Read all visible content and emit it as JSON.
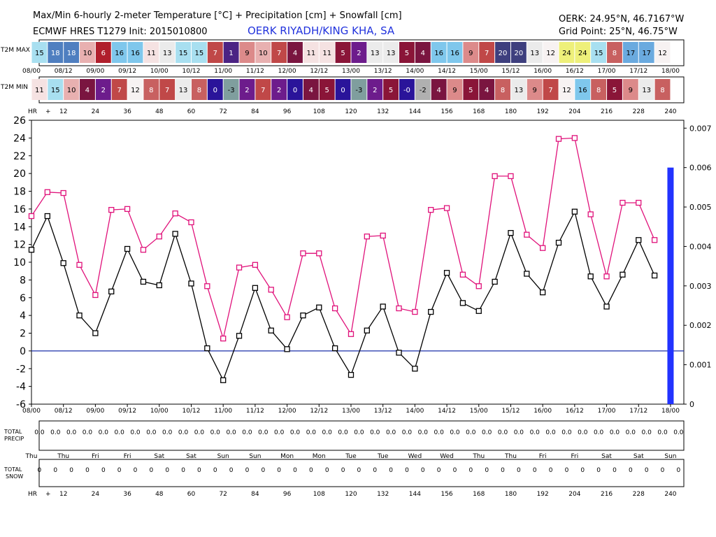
{
  "header": {
    "title": "Max/Min 6-hourly 2-meter Temperature [°C] + Precipitation [cm] + Snowfall [cm]",
    "model": "ECMWF HRES T1279 Init: 2015010800",
    "station": "OERK RIYADH/KING KHA, SA",
    "location": "OERK: 24.95°N, 46.7167°W",
    "grid_point": "Grid Point: 25°N, 46.75°W"
  },
  "labels": {
    "t2m_max": "T2M MAX",
    "t2m_min": "T2M MIN",
    "hr": "HR",
    "hr_plus": "+",
    "total_precip_1": "TOTAL",
    "total_precip_2": "PRECIP",
    "total_snow_1": "TOTAL",
    "total_snow_2": "SNOW"
  },
  "colors": {
    "max_line": "#e0117a",
    "min_line": "#000000",
    "zero_line": "#1a2ea8",
    "precip_bar": "#2233ff"
  },
  "chart_data": {
    "type": "line",
    "x_hours": [
      0,
      6,
      12,
      18,
      24,
      30,
      36,
      42,
      48,
      54,
      60,
      66,
      72,
      78,
      84,
      90,
      96,
      102,
      108,
      114,
      120,
      126,
      132,
      138,
      144,
      150,
      156,
      162,
      168,
      174,
      180,
      186,
      192,
      198,
      204,
      210,
      216,
      222,
      228,
      234,
      240
    ],
    "x_tick_labels": [
      "08/00",
      "08/12",
      "09/00",
      "09/12",
      "10/00",
      "10/12",
      "11/00",
      "11/12",
      "12/00",
      "12/12",
      "13/00",
      "13/12",
      "14/00",
      "14/12",
      "15/00",
      "15/12",
      "16/00",
      "16/12",
      "17/00",
      "17/12",
      "18/00"
    ],
    "hr_labels": [
      "12",
      "24",
      "36",
      "48",
      "60",
      "72",
      "84",
      "96",
      "108",
      "120",
      "132",
      "144",
      "156",
      "168",
      "180",
      "192",
      "204",
      "216",
      "228",
      "240"
    ],
    "day_labels": [
      "Thu",
      "Thu",
      "Fri",
      "Fri",
      "Sat",
      "Sat",
      "Sun",
      "Sun",
      "Mon",
      "Mon",
      "Tue",
      "Tue",
      "Wed",
      "Wed",
      "Thu",
      "Thu",
      "Fri",
      "Fri",
      "Sat",
      "Sat",
      "Sun"
    ],
    "series": [
      {
        "name": "T2M MAX",
        "values": [
          15.2,
          17.9,
          17.8,
          9.7,
          6.3,
          15.9,
          16.0,
          11.4,
          12.9,
          15.5,
          14.5,
          7.3,
          1.4,
          9.4,
          9.7,
          6.9,
          3.8,
          11.0,
          11.0,
          4.8,
          1.9,
          12.9,
          13.0,
          4.8,
          4.4,
          15.9,
          16.1,
          8.6,
          7.3,
          19.7,
          19.7,
          13.1,
          11.6,
          23.9,
          24.0,
          15.4,
          8.4,
          16.7,
          16.7,
          12.5,
          null
        ]
      },
      {
        "name": "T2M MIN",
        "values": [
          11.4,
          15.2,
          9.9,
          4.0,
          2.0,
          6.7,
          11.5,
          7.8,
          7.4,
          13.2,
          7.6,
          0.3,
          -3.3,
          1.7,
          7.1,
          2.3,
          0.2,
          4.0,
          4.9,
          0.3,
          -2.7,
          2.3,
          5.0,
          -0.2,
          -2.0,
          4.4,
          8.8,
          5.4,
          4.5,
          7.8,
          13.3,
          8.7,
          6.6,
          12.2,
          15.7,
          8.4,
          5.0,
          8.6,
          12.5,
          8.5,
          null
        ]
      }
    ],
    "t2m_max_row": [
      "15",
      "18",
      "18",
      "10",
      "6",
      "16",
      "16",
      "11",
      "13",
      "15",
      "15",
      "7",
      "1",
      "9",
      "10",
      "7",
      "4",
      "11",
      "11",
      "5",
      "2",
      "13",
      "13",
      "5",
      "4",
      "16",
      "16",
      "9",
      "7",
      "20",
      "20",
      "13",
      "12",
      "24",
      "24",
      "15",
      "8",
      "17",
      "17",
      "12"
    ],
    "t2m_min_row": [
      "11",
      "15",
      "10",
      "4",
      "2",
      "7",
      "12",
      "8",
      "7",
      "13",
      "8",
      "0",
      "-3",
      "2",
      "7",
      "2",
      "0",
      "4",
      "5",
      "0",
      "-3",
      "2",
      "5",
      "-0",
      "-2",
      "4",
      "9",
      "5",
      "4",
      "8",
      "13",
      "9",
      "7",
      "12",
      "16",
      "8",
      "5",
      "9",
      "13",
      "8"
    ],
    "precip_bars": [
      {
        "hour": 240,
        "value": 0.006
      }
    ],
    "precip_axis_ticks": [
      "0",
      "0.001",
      "0.002",
      "0.003",
      "0.004",
      "0.005",
      "0.006",
      "0.007"
    ],
    "precip_ylim": [
      0,
      0.0072
    ],
    "y_ticks": [
      "-6",
      "-4",
      "-2",
      "0",
      "2",
      "4",
      "6",
      "8",
      "10",
      "12",
      "14",
      "16",
      "18",
      "20",
      "22",
      "24",
      "26"
    ],
    "ylim": [
      -6,
      26
    ],
    "xlim": [
      0,
      245
    ],
    "total_precip": [
      "0.0",
      "0.0",
      "0.0",
      "0.0",
      "0.0",
      "0.0",
      "0.0",
      "0.0",
      "0.0",
      "0.0",
      "0.0",
      "0.0",
      "0.0",
      "0.0",
      "0.0",
      "0.0",
      "0.0",
      "0.0",
      "0.0",
      "0.0",
      "0.0",
      "0.0",
      "0.0",
      "0.0",
      "0.0",
      "0.0",
      "0.0",
      "0.0",
      "0.0",
      "0.0",
      "0.0",
      "0.0",
      "0.0",
      "0.0",
      "0.0",
      "0.0",
      "0.0",
      "0.0",
      "0.0",
      "0.0",
      "0.0"
    ],
    "total_snow": [
      "0",
      "0",
      "0",
      "0",
      "0",
      "0",
      "0",
      "0",
      "0",
      "0",
      "0",
      "0",
      "0",
      "0",
      "0",
      "0",
      "0",
      "0",
      "0",
      "0",
      "0",
      "0",
      "0",
      "0",
      "0",
      "0",
      "0",
      "0",
      "0",
      "0",
      "0",
      "0",
      "0",
      "0",
      "0",
      "0",
      "0",
      "0",
      "0",
      "0",
      "0"
    ]
  }
}
